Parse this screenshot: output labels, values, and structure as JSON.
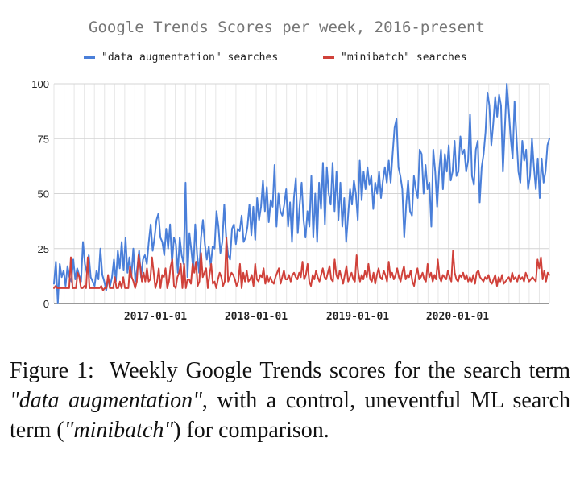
{
  "chart_data": {
    "type": "line",
    "title": "Google Trends Scores per week, 2016-present",
    "xlabel": "",
    "ylabel": "",
    "ylim": [
      0,
      100
    ],
    "yticks": [
      "0",
      "25",
      "50",
      "75",
      "100"
    ],
    "xticks": [
      "2017-01-01",
      "2018-01-01",
      "2019-01-01",
      "2020-01-01"
    ],
    "grid": true,
    "legend_position": "top",
    "series": [
      {
        "name": "\"data augmentation\" searches",
        "color": "#4a7fd9",
        "values": [
          9,
          19,
          0,
          18,
          12,
          15,
          8,
          17,
          12,
          10,
          20,
          11,
          16,
          13,
          10,
          28,
          18,
          14,
          22,
          12,
          10,
          8,
          15,
          11,
          25,
          13,
          10,
          6,
          11,
          8,
          12,
          20,
          10,
          24,
          16,
          28,
          15,
          30,
          14,
          21,
          12,
          25,
          10,
          16,
          24,
          12,
          20,
          22,
          18,
          28,
          36,
          24,
          30,
          38,
          41,
          30,
          28,
          22,
          34,
          25,
          36,
          18,
          30,
          27,
          14,
          30,
          22,
          18,
          55,
          12,
          32,
          24,
          15,
          36,
          22,
          14,
          30,
          38,
          27,
          20,
          26,
          17,
          26,
          25,
          42,
          35,
          23,
          28,
          45,
          30,
          22,
          20,
          34,
          36,
          27,
          34,
          33,
          40,
          28,
          30,
          35,
          45,
          31,
          44,
          29,
          48,
          38,
          44,
          56,
          42,
          53,
          37,
          47,
          44,
          63,
          35,
          50,
          42,
          40,
          45,
          52,
          35,
          46,
          28,
          48,
          57,
          32,
          45,
          55,
          38,
          30,
          42,
          35,
          58,
          30,
          50,
          28,
          55,
          43,
          64,
          36,
          62,
          50,
          45,
          64,
          42,
          60,
          38,
          55,
          35,
          48,
          28,
          40,
          52,
          45,
          56,
          50,
          38,
          65,
          47,
          60,
          52,
          62,
          54,
          58,
          43,
          55,
          50,
          60,
          48,
          56,
          62,
          55,
          65,
          55,
          68,
          80,
          84,
          62,
          58,
          52,
          30,
          45,
          56,
          42,
          40,
          58,
          52,
          48,
          70,
          68,
          50,
          63,
          52,
          55,
          35,
          70,
          60,
          44,
          60,
          70,
          52,
          68,
          60,
          72,
          56,
          60,
          74,
          58,
          60,
          76,
          68,
          70,
          60,
          65,
          86,
          58,
          54,
          70,
          74,
          46,
          62,
          68,
          78,
          96,
          90,
          72,
          82,
          94,
          85,
          95,
          90,
          60,
          80,
          100,
          88,
          75,
          66,
          92,
          76,
          60,
          55,
          74,
          65,
          70,
          52,
          58,
          75,
          62,
          52,
          66,
          48,
          66,
          55,
          60,
          72,
          75
        ],
        "description": "Google Trends weekly score, rises from about 10 in 2016 to peaks near 100 in 2020"
      },
      {
        "name": "\"minibatch\" searches",
        "color": "#d0413a",
        "values": [
          7,
          8,
          7,
          7,
          7,
          7,
          7,
          7,
          7,
          7,
          21,
          7,
          7,
          7,
          14,
          12,
          7,
          7,
          8,
          7,
          21,
          7,
          7,
          7,
          7,
          7,
          7,
          7,
          8,
          6,
          7,
          7,
          13,
          7,
          7,
          7,
          12,
          7,
          7,
          10,
          7,
          12,
          7,
          7,
          7,
          17,
          12,
          10,
          7,
          10,
          22,
          17,
          10,
          14,
          10,
          16,
          10,
          11,
          21,
          14,
          7,
          10,
          16,
          7,
          13,
          12,
          16,
          7,
          10,
          17,
          20,
          8,
          7,
          12,
          14,
          18,
          7,
          18,
          7,
          11,
          11,
          9,
          18,
          14,
          19,
          8,
          10,
          23,
          12,
          14,
          16,
          7,
          13,
          18,
          9,
          10,
          7,
          11,
          14,
          12,
          8,
          10,
          30,
          10,
          12,
          14,
          13,
          11,
          8,
          10,
          18,
          7,
          14,
          10,
          15,
          10,
          11,
          13,
          8,
          18,
          11,
          10,
          13,
          12,
          16,
          9,
          13,
          10,
          12,
          10,
          9,
          12,
          14,
          16,
          9,
          12,
          15,
          11,
          11,
          13,
          10,
          13,
          14,
          12,
          11,
          14,
          12,
          19,
          11,
          13,
          18,
          10,
          8,
          13,
          11,
          15,
          12,
          10,
          13,
          16,
          12,
          11,
          14,
          17,
          11,
          10,
          20,
          13,
          11,
          15,
          12,
          9,
          13,
          17,
          10,
          12,
          14,
          11,
          10,
          22,
          14,
          10,
          13,
          11,
          15,
          12,
          18,
          11,
          10,
          14,
          9,
          13,
          16,
          12,
          11,
          15,
          13,
          10,
          19,
          12,
          14,
          11,
          13,
          16,
          12,
          10,
          14,
          17,
          11,
          13,
          12,
          15,
          10,
          8,
          13,
          16,
          11,
          12,
          14,
          11,
          10,
          18,
          12,
          14,
          10,
          13,
          11,
          20,
          12,
          10,
          13,
          12,
          11,
          15,
          12,
          10,
          24,
          14,
          11,
          10,
          13,
          12,
          14,
          11,
          13,
          10,
          12,
          10,
          13,
          9,
          14,
          15,
          12,
          11,
          10,
          12,
          11,
          13,
          10,
          9,
          11,
          13,
          8,
          12,
          10,
          13,
          9,
          10,
          11,
          12,
          10,
          14,
          11,
          12,
          10,
          13,
          11,
          12,
          10,
          14,
          12,
          10,
          11,
          12,
          11,
          10,
          20,
          16,
          21,
          11,
          15,
          10,
          14,
          13
        ],
        "description": "Google Trends weekly score, roughly flat between 7 and 30"
      }
    ]
  },
  "caption": {
    "label": "Figure 1:",
    "part1": "Weekly Google Trends scores for the search term ",
    "term1": "\"data augmentation\"",
    "part2": ", with a control, uneventful ML search term (",
    "term2": "\"minibatch\"",
    "part3": ") for comparison."
  }
}
